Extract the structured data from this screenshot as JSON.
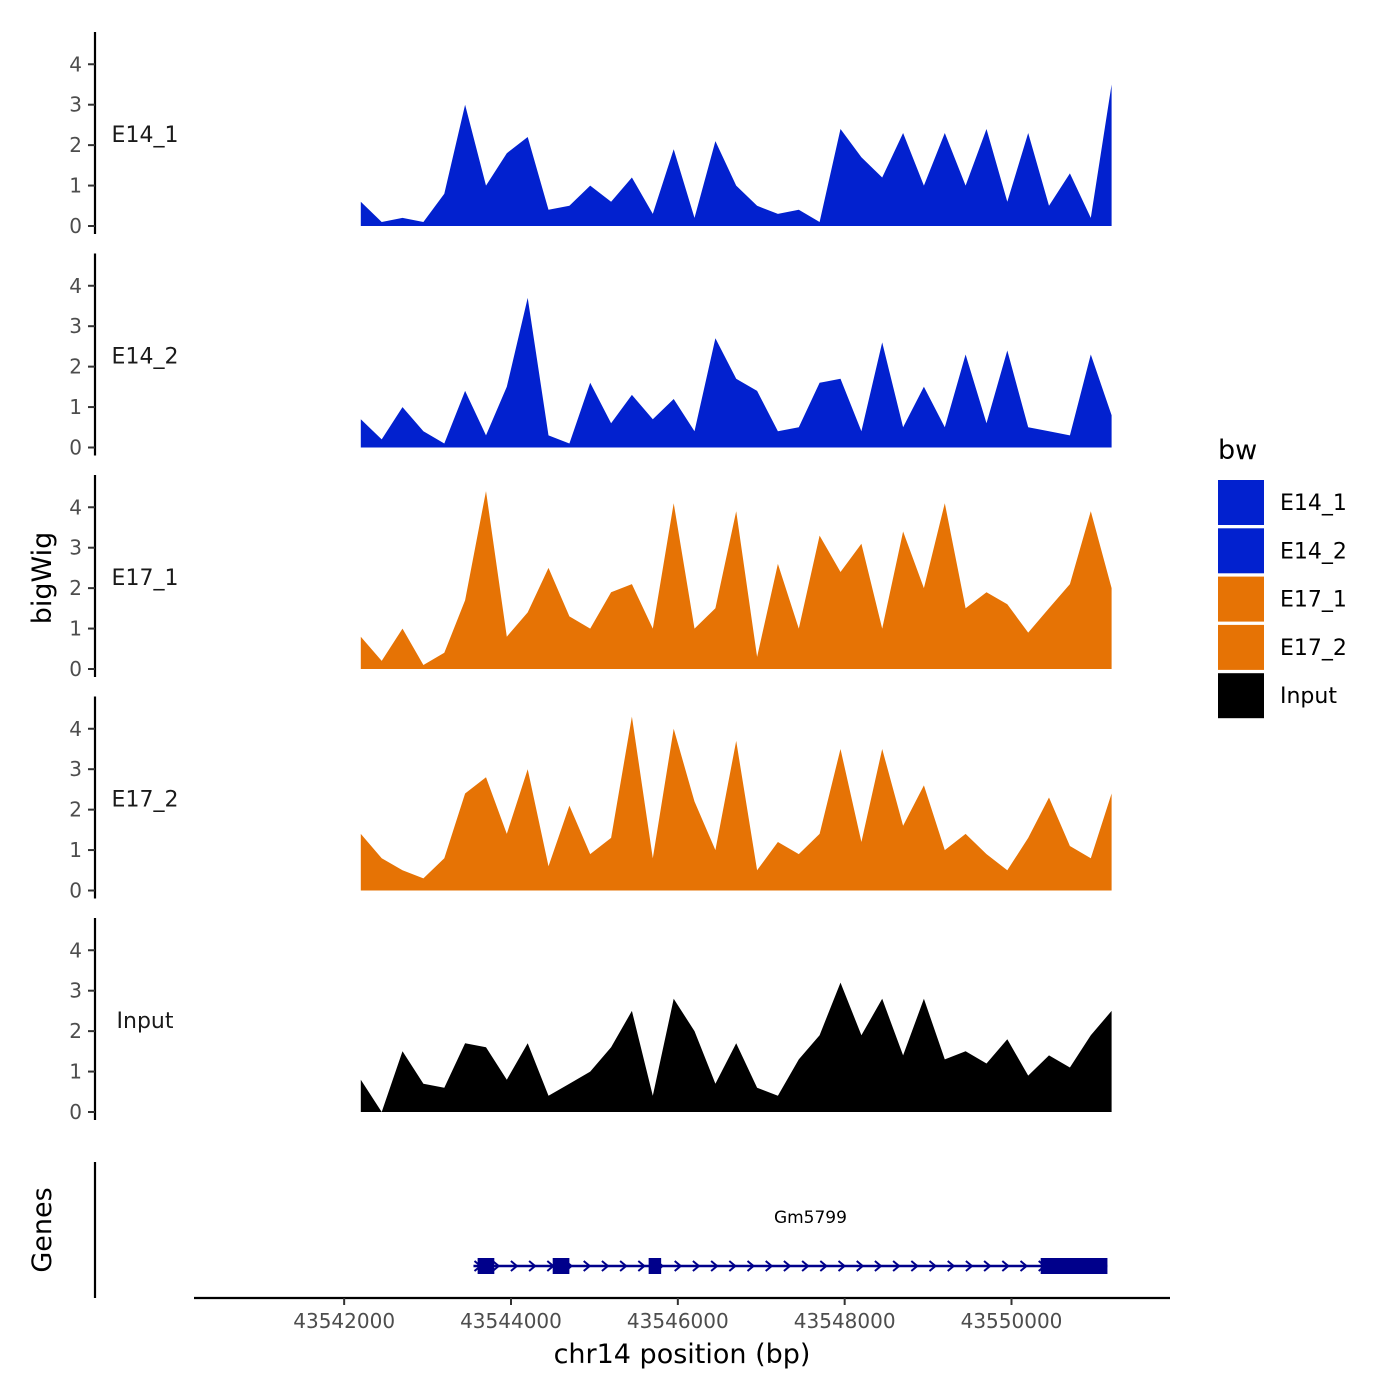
{
  "chart_data": {
    "type": "area",
    "title": "",
    "xlabel": "chr14 position (bp)",
    "ylabel": "bigWig",
    "gene_panel_label": "Genes",
    "xlim": [
      43540200,
      43551900
    ],
    "ylim": [
      0,
      4.6
    ],
    "x_ticks": [
      43542000,
      43544000,
      43546000,
      43548000,
      43550000
    ],
    "x_tick_labels": [
      "43542000",
      "43544000",
      "43546000",
      "43548000",
      "43550000"
    ],
    "y_ticks": [
      0,
      1,
      2,
      3,
      4
    ],
    "y_tick_labels": [
      "0",
      "1",
      "2",
      "3",
      "4"
    ],
    "legend": {
      "title": "bw",
      "position": "right",
      "entries": [
        {
          "label": "E14_1",
          "color": "#0221CF"
        },
        {
          "label": "E14_2",
          "color": "#0221CF"
        },
        {
          "label": "E17_1",
          "color": "#E67305"
        },
        {
          "label": "E17_2",
          "color": "#E67305"
        },
        {
          "label": "Input",
          "color": "#000000"
        }
      ]
    },
    "x": [
      43542200,
      43542450,
      43542700,
      43542950,
      43543200,
      43543450,
      43543700,
      43543950,
      43544200,
      43544450,
      43544700,
      43544950,
      43545200,
      43545450,
      43545700,
      43545950,
      43546200,
      43546450,
      43546700,
      43546950,
      43547200,
      43547450,
      43547700,
      43547950,
      43548200,
      43548450,
      43548700,
      43548950,
      43549200,
      43549450,
      43549700,
      43549950,
      43550200,
      43550450,
      43550700,
      43550950,
      43551200
    ],
    "series": [
      {
        "name": "E14_1",
        "color": "#0221CF",
        "values": [
          0.6,
          0.1,
          0.2,
          0.1,
          0.8,
          3.0,
          1.0,
          1.8,
          2.2,
          0.4,
          0.5,
          1.0,
          0.6,
          1.2,
          0.3,
          1.9,
          0.2,
          2.1,
          1.0,
          0.5,
          0.3,
          0.4,
          0.1,
          2.4,
          1.7,
          1.2,
          2.3,
          1.0,
          2.3,
          1.0,
          2.4,
          0.6,
          2.3,
          0.5,
          1.3,
          0.2,
          3.5
        ]
      },
      {
        "name": "E14_2",
        "color": "#0221CF",
        "values": [
          0.7,
          0.2,
          1.0,
          0.4,
          0.1,
          1.4,
          0.3,
          1.5,
          3.7,
          0.3,
          0.1,
          1.6,
          0.6,
          1.3,
          0.7,
          1.2,
          0.4,
          2.7,
          1.7,
          1.4,
          0.4,
          0.5,
          1.6,
          1.7,
          0.4,
          2.6,
          0.5,
          1.5,
          0.5,
          2.3,
          0.6,
          2.4,
          0.5,
          0.4,
          0.3,
          2.3,
          0.8
        ]
      },
      {
        "name": "E17_1",
        "color": "#E67305",
        "values": [
          0.8,
          0.2,
          1.0,
          0.1,
          0.4,
          1.7,
          4.4,
          0.8,
          1.4,
          2.5,
          1.3,
          1.0,
          1.9,
          2.1,
          1.0,
          4.1,
          1.0,
          1.5,
          3.9,
          0.3,
          2.6,
          1.0,
          3.3,
          2.4,
          3.1,
          1.0,
          3.4,
          2.0,
          4.1,
          1.5,
          1.9,
          1.6,
          0.9,
          1.5,
          2.1,
          3.9,
          2.0
        ]
      },
      {
        "name": "E17_2",
        "color": "#E67305",
        "values": [
          1.4,
          0.8,
          0.5,
          0.3,
          0.8,
          2.4,
          2.8,
          1.4,
          3.0,
          0.6,
          2.1,
          0.9,
          1.3,
          4.3,
          0.8,
          4.0,
          2.2,
          1.0,
          3.7,
          0.5,
          1.2,
          0.9,
          1.4,
          3.5,
          1.2,
          3.5,
          1.6,
          2.6,
          1.0,
          1.4,
          0.9,
          0.5,
          1.3,
          2.3,
          1.1,
          0.8,
          2.4
        ]
      },
      {
        "name": "Input",
        "color": "#000000",
        "values": [
          0.8,
          0.0,
          1.5,
          0.7,
          0.6,
          1.7,
          1.6,
          0.8,
          1.7,
          0.4,
          0.7,
          1.0,
          1.6,
          2.5,
          0.4,
          2.8,
          2.0,
          0.7,
          1.7,
          0.6,
          0.4,
          1.3,
          1.9,
          3.2,
          1.9,
          2.8,
          1.4,
          2.8,
          1.3,
          1.5,
          1.2,
          1.8,
          0.9,
          1.4,
          1.1,
          1.9,
          2.5
        ]
      }
    ],
    "gene": {
      "name": "Gm5799",
      "color": "#00008B",
      "start": 43543550,
      "end": 43551150,
      "exons": [
        [
          43543600,
          43543800
        ],
        [
          43544500,
          43544700
        ],
        [
          43545650,
          43545800
        ],
        [
          43550350,
          43551150
        ]
      ]
    }
  }
}
